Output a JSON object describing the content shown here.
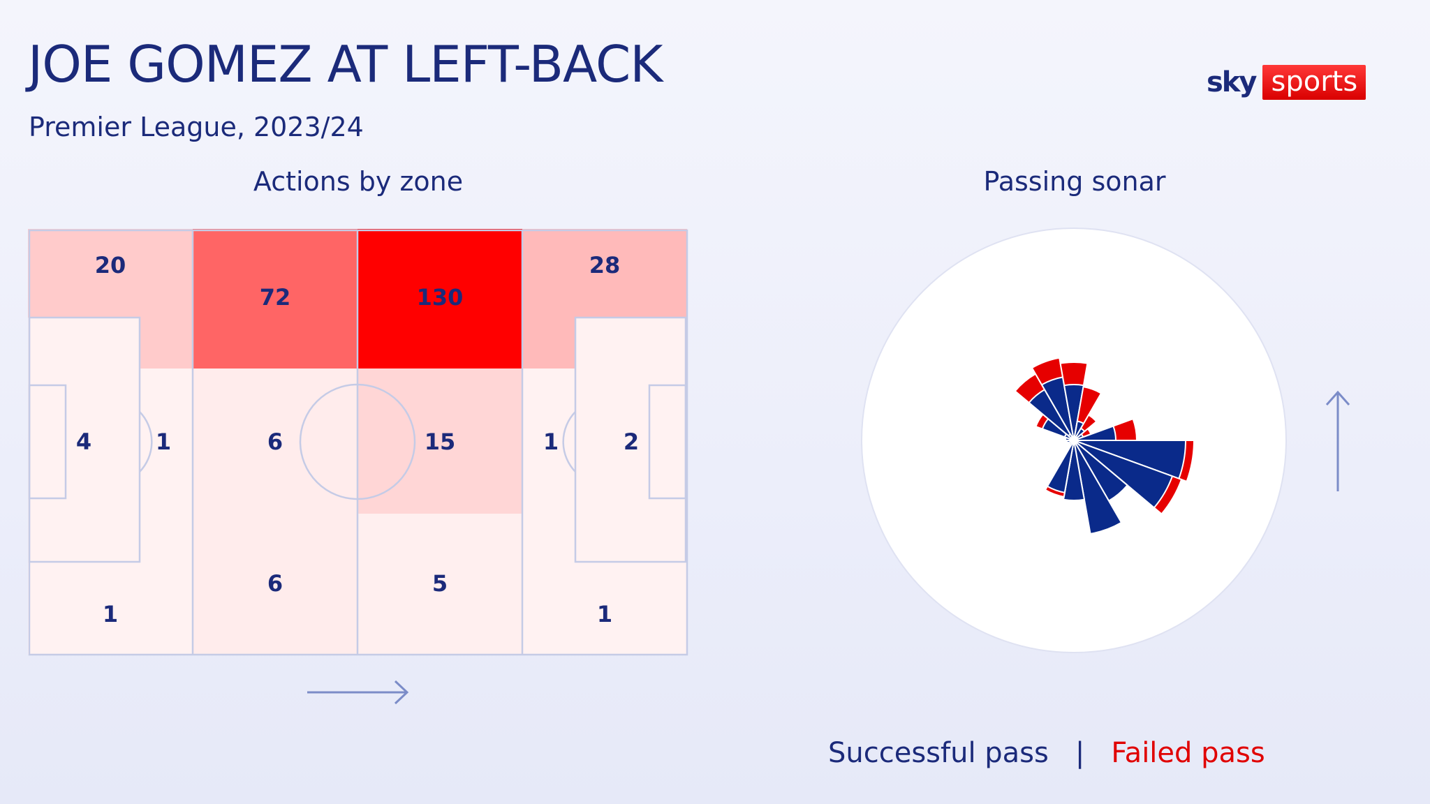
{
  "header": {
    "title": "JOE GOMEZ AT LEFT-BACK",
    "subtitle": "Premier League, 2023/24"
  },
  "brand": {
    "logo_word1": "sky",
    "logo_word2": "sports"
  },
  "colors": {
    "accent_blue": "#1b2a7a",
    "accent_red": "#ff0000",
    "sonar_success": "#0a2a8a",
    "sonar_fail": "#e60000"
  },
  "chart_data": [
    {
      "type": "heatmap",
      "title": "Actions by zone",
      "direction_of_play": "left-to-right",
      "max_value": 130,
      "zones": [
        {
          "id": "top-1",
          "label": "20",
          "value": 20
        },
        {
          "id": "top-2",
          "label": "72",
          "value": 72
        },
        {
          "id": "top-3",
          "label": "130",
          "value": 130
        },
        {
          "id": "top-4",
          "label": "28",
          "value": 28
        },
        {
          "id": "own-box",
          "label": "4",
          "value": 4
        },
        {
          "id": "own-box-edge",
          "label": "1",
          "value": 1
        },
        {
          "id": "mid-2",
          "label": "6",
          "value": 6
        },
        {
          "id": "mid-3",
          "label": "15",
          "value": 15
        },
        {
          "id": "opp-box-edge",
          "label": "1",
          "value": 1
        },
        {
          "id": "opp-box",
          "label": "2",
          "value": 2
        },
        {
          "id": "bot-1",
          "label": "1",
          "value": 1
        },
        {
          "id": "bot-2",
          "label": "6",
          "value": 6
        },
        {
          "id": "bot-3",
          "label": "5",
          "value": 5
        },
        {
          "id": "bot-4",
          "label": "1",
          "value": 1
        }
      ]
    },
    {
      "type": "pie",
      "subtype": "polar-sonar",
      "title": "Passing sonar",
      "direction_of_play": "up",
      "series": [
        {
          "name": "Successful pass",
          "color": "#0a2a8a"
        },
        {
          "name": "Failed pass",
          "color": "#e60000"
        }
      ],
      "angle_unit": "degrees clockwise from up",
      "sectors": [
        {
          "angle": -60,
          "success": 48,
          "fail": 10
        },
        {
          "angle": -40,
          "success": 84,
          "fail": 26
        },
        {
          "angle": -20,
          "success": 92,
          "fail": 28
        },
        {
          "angle": 0,
          "success": 80,
          "fail": 32
        },
        {
          "angle": 20,
          "success": 28,
          "fail": 50
        },
        {
          "angle": 40,
          "success": 20,
          "fail": 22
        },
        {
          "angle": 60,
          "success": 14,
          "fail": 12
        },
        {
          "angle": 80,
          "success": 60,
          "fail": 30
        },
        {
          "angle": 100,
          "success": 160,
          "fail": 12
        },
        {
          "angle": 120,
          "success": 150,
          "fail": 14
        },
        {
          "angle": 140,
          "success": 100,
          "fail": 0
        },
        {
          "angle": 160,
          "success": 136,
          "fail": 0
        },
        {
          "angle": 180,
          "success": 86,
          "fail": 0
        },
        {
          "angle": 200,
          "success": 76,
          "fail": 6
        },
        {
          "angle": 220,
          "success": 8,
          "fail": 0
        },
        {
          "angle": 240,
          "success": 8,
          "fail": 0
        },
        {
          "angle": 260,
          "success": 10,
          "fail": 0
        },
        {
          "angle": 280,
          "success": 12,
          "fail": 0
        },
        {
          "angle": 300,
          "success": 14,
          "fail": 0
        },
        {
          "angle": 320,
          "success": 10,
          "fail": 0
        }
      ]
    }
  ],
  "legend": {
    "success_label": "Successful pass",
    "separator": "|",
    "fail_label": "Failed pass"
  }
}
